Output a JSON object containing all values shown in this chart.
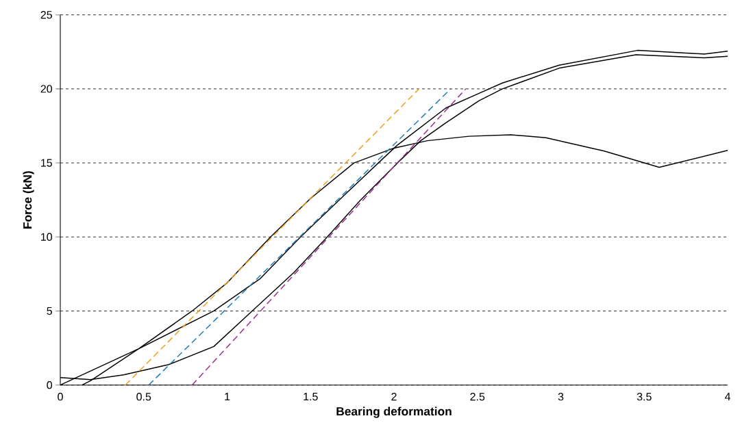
{
  "chart_data": {
    "type": "line",
    "xlabel": "Bearing deformation",
    "ylabel": "Force (kN)",
    "xlim": [
      0,
      4
    ],
    "ylim": [
      0,
      25
    ],
    "xticks": [
      0,
      0.5,
      1,
      1.5,
      2,
      2.5,
      3,
      3.5,
      4
    ],
    "yticks": [
      0,
      5,
      10,
      15,
      20,
      25
    ],
    "grid": "y",
    "marker": "none",
    "series": [
      {
        "color": "#000000",
        "line_style": "solid",
        "x": [
          0.13,
          0.18,
          0.47,
          0.79,
          1.0,
          1.26,
          1.5,
          1.76,
          2.0,
          2.2,
          2.45,
          2.7,
          2.91,
          3.26,
          3.59,
          4.0
        ],
        "values": [
          0,
          0.28,
          2.45,
          5.0,
          6.9,
          10.0,
          12.6,
          15.0,
          16.0,
          16.5,
          16.8,
          16.9,
          16.7,
          15.8,
          14.7,
          15.85
        ]
      },
      {
        "color": "#000000",
        "line_style": "solid",
        "x": [
          0,
          0.47,
          0.92,
          1.2,
          1.44,
          1.7,
          1.93,
          2.02,
          2.31,
          2.51,
          2.65,
          2.99,
          3.46,
          3.86,
          4.0
        ],
        "values": [
          0,
          2.45,
          5.0,
          7.2,
          10.0,
          12.8,
          15.25,
          16.2,
          18.7,
          19.7,
          20.4,
          21.6,
          22.6,
          22.35,
          22.55
        ]
      },
      {
        "color": "#000000",
        "line_style": "solid",
        "x": [
          0,
          0.18,
          0.38,
          0.65,
          0.92,
          1.15,
          1.4,
          1.6,
          1.8,
          2.03,
          2.16,
          2.31,
          2.51,
          2.65,
          2.99,
          3.45,
          3.86,
          4.0
        ],
        "values": [
          0.5,
          0.37,
          0.69,
          1.38,
          2.6,
          5.0,
          7.6,
          10.0,
          12.5,
          15.1,
          16.5,
          17.7,
          19.2,
          20.0,
          21.4,
          22.3,
          22.1,
          22.2
        ]
      },
      {
        "color": "#f39c1a",
        "line_style": "dashed",
        "x": [
          0.39,
          2.15
        ],
        "values": [
          0,
          20
        ]
      },
      {
        "color": "#1a7ab8",
        "line_style": "dashed",
        "x": [
          0.53,
          2.34
        ],
        "values": [
          0,
          20
        ]
      },
      {
        "color": "#9b2a8c",
        "line_style": "dashed",
        "x": [
          0.79,
          2.43
        ],
        "values": [
          0,
          20
        ]
      }
    ]
  }
}
